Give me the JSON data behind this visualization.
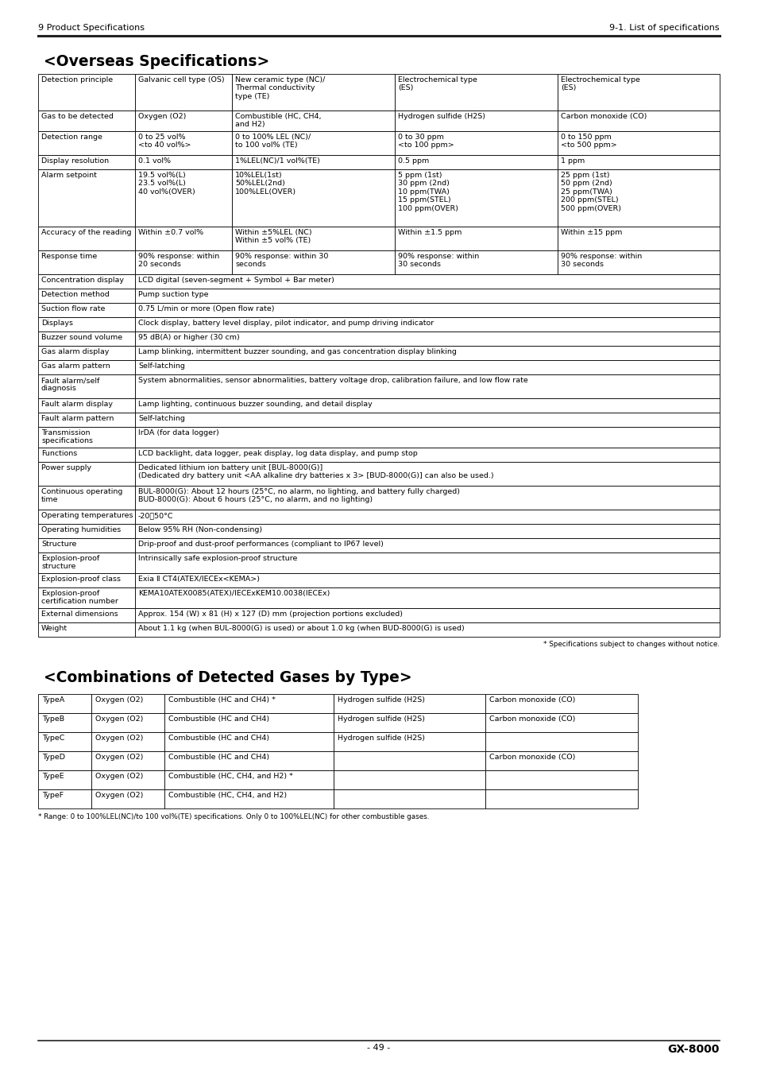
{
  "page_header_left": "9 Product Specifications",
  "page_header_right": "9-1. List of specifications",
  "title1": "<Overseas Specifications>",
  "title2": "<Combinations of Detected Gases by Type>",
  "page_footer_center": "- 49 -",
  "page_footer_right": "GX-8000",
  "spec_note": "* Specifications subject to changes without notice.",
  "combo_note": "* Range: 0 to 100%LEL(NC)/to 100 vol%(TE) specifications. Only 0 to 100%LEL(NC) for other combustible gases.",
  "overseas_rows": [
    {
      "label": "Detection principle",
      "col2": "Galvanic cell type (OS)",
      "col3": "New ceramic type (NC)/\nThermal conductivity\ntype (TE)",
      "col4": "Electrochemical type\n(ES)",
      "col5": "Electrochemical type\n(ES)",
      "span": false
    },
    {
      "label": "Gas to be detected",
      "col2": "Oxygen (O2)",
      "col3": "Combustible (HC, CH4,\nand H2)",
      "col4": "Hydrogen sulfide (H2S)",
      "col5": "Carbon monoxide (CO)",
      "span": false
    },
    {
      "label": "Detection range",
      "col2": "0 to 25 vol%\n<to 40 vol%>",
      "col3": "0 to 100% LEL (NC)/\nto 100 vol% (TE)",
      "col4": "0 to 30 ppm\n<to 100 ppm>",
      "col5": "0 to 150 ppm\n<to 500 ppm>",
      "span": false
    },
    {
      "label": "Display resolution",
      "col2": "0.1 vol%",
      "col3": "1%LEL(NC)/1 vol%(TE)",
      "col4": "0.5 ppm",
      "col5": "1 ppm",
      "span": false
    },
    {
      "label": "Alarm setpoint",
      "col2": "19.5 vol%(L)\n23.5 vol%(L)\n40 vol%(OVER)",
      "col3": "10%LEL(1st)\n50%LEL(2nd)\n100%LEL(OVER)",
      "col4": "5 ppm (1st)\n30 ppm (2nd)\n10 ppm(TWA)\n15 ppm(STEL)\n100 ppm(OVER)",
      "col5": "25 ppm (1st)\n50 ppm (2nd)\n25 ppm(TWA)\n200 ppm(STEL)\n500 ppm(OVER)",
      "span": false
    },
    {
      "label": "Accuracy of the reading",
      "col2": "Within ±0.7 vol%",
      "col3": "Within ±5%LEL (NC)\nWithin ±5 vol% (TE)",
      "col4": "Within ±1.5 ppm",
      "col5": "Within ±15 ppm",
      "span": false
    },
    {
      "label": "Response time",
      "col2": "90% response: within\n20 seconds",
      "col3": "90% response: within 30\nseconds",
      "col4": "90% response: within\n30 seconds",
      "col5": "90% response: within\n30 seconds",
      "span": false
    },
    {
      "label": "Concentration display",
      "col2_span": "LCD digital (seven-segment + Symbol + Bar meter)",
      "span": true
    },
    {
      "label": "Detection method",
      "col2_span": "Pump suction type",
      "span": true
    },
    {
      "label": "Suction flow rate",
      "col2_span": "0.75 L/min or more (Open flow rate)",
      "span": true
    },
    {
      "label": "Displays",
      "col2_span": "Clock display, battery level display, pilot indicator, and pump driving indicator",
      "span": true
    },
    {
      "label": "Buzzer sound volume",
      "col2_span": "95 dB(A) or higher (30 cm)",
      "span": true
    },
    {
      "label": "Gas alarm display",
      "col2_span": "Lamp blinking, intermittent buzzer sounding, and gas concentration display blinking",
      "span": true
    },
    {
      "label": "Gas alarm pattern",
      "col2_span": "Self-latching",
      "span": true
    },
    {
      "label": "Fault alarm/self\ndiagnosis",
      "col2_span": "System abnormalities, sensor abnormalities, battery voltage drop, calibration failure, and low flow rate",
      "span": true
    },
    {
      "label": "Fault alarm display",
      "col2_span": "Lamp lighting, continuous buzzer sounding, and detail display",
      "span": true
    },
    {
      "label": "Fault alarm pattern",
      "col2_span": "Self-latching",
      "span": true
    },
    {
      "label": "Transmission\nspecifications",
      "col2_span": "IrDA (for data logger)",
      "span": true
    },
    {
      "label": "Functions",
      "col2_span": "LCD backlight, data logger, peak display, log data display, and pump stop",
      "span": true
    },
    {
      "label": "Power supply",
      "col2_span": "Dedicated lithium ion battery unit [BUL-8000(G)]\n(Dedicated dry battery unit <AA alkaline dry batteries x 3> [BUD-8000(G)] can also be used.)",
      "span": true
    },
    {
      "label": "Continuous operating\ntime",
      "col2_span": "BUL-8000(G): About 12 hours (25°C, no alarm, no lighting, and battery fully charged)\nBUD-8000(G): About 6 hours (25°C, no alarm, and no lighting)",
      "span": true
    },
    {
      "label": "Operating temperatures",
      "col2_span": "-20～50°C",
      "span": true
    },
    {
      "label": "Operating humidities",
      "col2_span": "Below 95% RH (Non-condensing)",
      "span": true
    },
    {
      "label": "Structure",
      "col2_span": "Drip-proof and dust-proof performances (compliant to IP67 level)",
      "span": true
    },
    {
      "label": "Explosion-proof\nstructure",
      "col2_span": "Intrinsically safe explosion-proof structure",
      "span": true
    },
    {
      "label": "Explosion-proof class",
      "col2_span": "Exia Ⅱ CT4(ATEX/IECEx<KEMA>)",
      "span": true
    },
    {
      "label": "Explosion-proof\ncertification number",
      "col2_span": "KEMA10ATEX0085(ATEX)/IECExKEM10.0038(IECEx)",
      "span": true
    },
    {
      "label": "External dimensions",
      "col2_span": "Approx. 154 (W) x 81 (H) x 127 (D) mm (projection portions excluded)",
      "span": true
    },
    {
      "label": "Weight",
      "col2_span": "About 1.1 kg (when BUL-8000(G) is used) or about 1.0 kg (when BUD-8000(G) is used)",
      "span": true
    }
  ],
  "combo_rows": [
    [
      "TypeA",
      "Oxygen (O2)",
      "Combustible (HC and CH4) *",
      "Hydrogen sulfide (H2S)",
      "Carbon monoxide (CO)"
    ],
    [
      "TypeB",
      "Oxygen (O2)",
      "Combustible (HC and CH4)",
      "Hydrogen sulfide (H2S)",
      "Carbon monoxide (CO)"
    ],
    [
      "TypeC",
      "Oxygen (O2)",
      "Combustible (HC and CH4)",
      "Hydrogen sulfide (H2S)",
      ""
    ],
    [
      "TypeD",
      "Oxygen (O2)",
      "Combustible (HC and CH4)",
      "",
      "Carbon monoxide (CO)"
    ],
    [
      "TypeE",
      "Oxygen (O2)",
      "Combustible (HC, CH4, and H2) *",
      "",
      ""
    ],
    [
      "TypeF",
      "Oxygen (O2)",
      "Combustible (HC, CH4, and H2)",
      "",
      ""
    ]
  ]
}
